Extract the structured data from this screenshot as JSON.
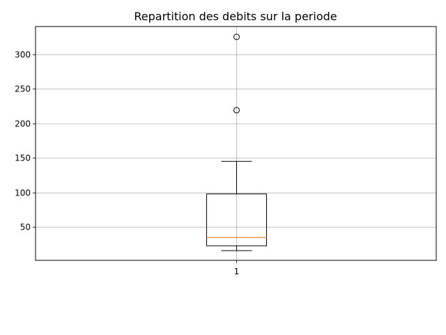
{
  "chart_data": {
    "type": "box",
    "title": "Repartition des debits sur la periode",
    "xlabel": "",
    "ylabel": "",
    "categories": [
      "1"
    ],
    "ylim": [
      2,
      340
    ],
    "yticks": [
      50,
      100,
      150,
      200,
      250,
      300
    ],
    "grid": true,
    "boxes": [
      {
        "category": "1",
        "whisker_low": 16,
        "q1": 23,
        "median": 35,
        "q3": 98,
        "whisker_high": 145,
        "outliers": [
          219,
          325
        ]
      }
    ],
    "colors": {
      "box": "#000000",
      "median": "#ff7f0e",
      "grid": "#b0b0b0"
    }
  }
}
